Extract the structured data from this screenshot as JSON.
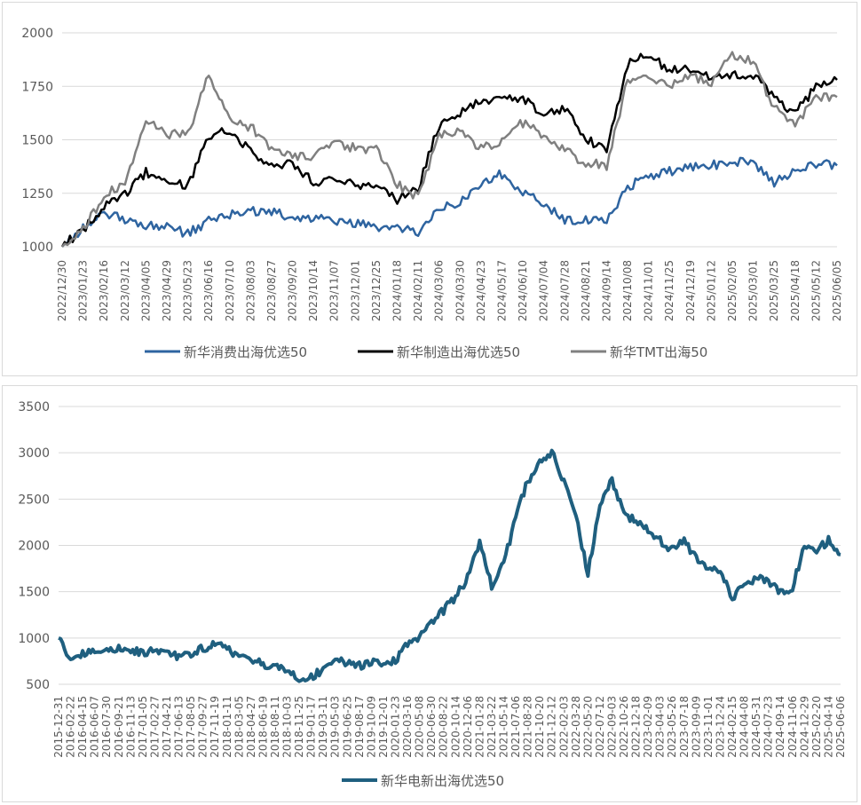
{
  "chart_data": [
    {
      "type": "line",
      "title": "",
      "xlabel": "",
      "ylabel": "",
      "ylim": [
        1000,
        2000
      ],
      "yticks": [
        1000,
        1250,
        1500,
        1750,
        2000
      ],
      "categories": [
        "2022/12/30",
        "2023/01/23",
        "2023/02/16",
        "2023/03/12",
        "2023/04/05",
        "2023/04/29",
        "2023/05/23",
        "2023/06/16",
        "2023/07/10",
        "2023/08/03",
        "2023/08/27",
        "2023/09/20",
        "2023/10/14",
        "2023/11/07",
        "2023/12/01",
        "2023/12/25",
        "2024/01/18",
        "2024/02/11",
        "2024/03/06",
        "2024/03/30",
        "2024/04/23",
        "2024/05/17",
        "2024/06/10",
        "2024/07/04",
        "2024/07/28",
        "2024/08/21",
        "2024/09/14",
        "2024/10/08",
        "2024/11/01",
        "2024/11/25",
        "2024/12/19",
        "2025/01/12",
        "2025/02/05",
        "2025/03/01",
        "2025/03/25",
        "2025/04/18",
        "2025/05/12",
        "2025/06/05"
      ],
      "series": [
        {
          "name": "新华消费出海优选50",
          "color": "#2e64a0",
          "values": [
            1000,
            1090,
            1150,
            1130,
            1100,
            1100,
            1060,
            1120,
            1150,
            1170,
            1160,
            1140,
            1130,
            1120,
            1110,
            1090,
            1080,
            1070,
            1170,
            1210,
            1300,
            1340,
            1250,
            1200,
            1130,
            1120,
            1120,
            1280,
            1330,
            1350,
            1370,
            1380,
            1400,
            1400,
            1300,
            1350,
            1390,
            1380
          ]
        },
        {
          "name": "新华制造出海优选50",
          "color": "#000000",
          "values": [
            1000,
            1080,
            1190,
            1240,
            1350,
            1300,
            1290,
            1520,
            1550,
            1450,
            1380,
            1390,
            1300,
            1310,
            1290,
            1290,
            1220,
            1270,
            1570,
            1630,
            1680,
            1690,
            1700,
            1620,
            1650,
            1500,
            1460,
            1850,
            1900,
            1820,
            1830,
            1800,
            1800,
            1800,
            1700,
            1620,
            1750,
            1780
          ]
        },
        {
          "name": "新华TMT出海50",
          "color": "#808080",
          "values": [
            1000,
            1080,
            1240,
            1300,
            1600,
            1530,
            1520,
            1800,
            1600,
            1560,
            1460,
            1430,
            1420,
            1480,
            1460,
            1460,
            1290,
            1230,
            1520,
            1540,
            1460,
            1500,
            1580,
            1520,
            1450,
            1390,
            1380,
            1780,
            1790,
            1760,
            1800,
            1770,
            1900,
            1860,
            1650,
            1570,
            1700,
            1700
          ]
        }
      ],
      "legend": "bottom"
    },
    {
      "type": "line",
      "title": "",
      "xlabel": "",
      "ylabel": "",
      "ylim": [
        500,
        3500
      ],
      "yticks": [
        500,
        1000,
        1500,
        2000,
        2500,
        3000,
        3500
      ],
      "categories": [
        "2015-12-31",
        "2016-02-22",
        "2016-04-15",
        "2016-06-07",
        "2016-07-30",
        "2016-09-21",
        "2016-11-13",
        "2017-01-05",
        "2017-02-27",
        "2017-04-21",
        "2017-06-13",
        "2017-08-05",
        "2017-09-27",
        "2017-11-19",
        "2018-01-11",
        "2018-03-05",
        "2018-04-27",
        "2018-06-19",
        "2018-08-11",
        "2018-10-03",
        "2018-11-25",
        "2019-01-17",
        "2019-03-11",
        "2019-05-03",
        "2019-06-25",
        "2019-08-17",
        "2019-10-09",
        "2019-12-01",
        "2020-01-23",
        "2020-03-16",
        "2020-05-08",
        "2020-06-30",
        "2020-08-22",
        "2020-10-14",
        "2020-12-06",
        "2021-01-28",
        "2021-03-22",
        "2021-05-14",
        "2021-07-06",
        "2021-08-28",
        "2021-10-20",
        "2021-12-12",
        "2022-02-03",
        "2022-03-28",
        "2022-05-20",
        "2022-07-12",
        "2022-09-03",
        "2022-10-26",
        "2022-12-18",
        "2023-02-09",
        "2023-04-03",
        "2023-05-26",
        "2023-07-18",
        "2023-09-09",
        "2023-11-01",
        "2023-12-24",
        "2024-02-15",
        "2024-04-08",
        "2024-05-31",
        "2024-07-23",
        "2024-09-14",
        "2024-11-06",
        "2024-12-29",
        "2025-02-20",
        "2025-04-14",
        "2025-06-06"
      ],
      "series": [
        {
          "name": "新华电新出海优选50",
          "color": "#1f5f7f",
          "values": [
            1000,
            780,
            830,
            860,
            890,
            880,
            860,
            850,
            870,
            840,
            800,
            840,
            890,
            940,
            880,
            800,
            760,
            720,
            680,
            640,
            540,
            580,
            660,
            800,
            720,
            700,
            730,
            740,
            760,
            950,
            1000,
            1150,
            1300,
            1450,
            1650,
            2050,
            1550,
            1800,
            2300,
            2700,
            2900,
            3000,
            2700,
            2300,
            1700,
            2450,
            2700,
            2350,
            2250,
            2150,
            2050,
            1950,
            2050,
            1850,
            1750,
            1700,
            1450,
            1550,
            1650,
            1600,
            1500,
            1550,
            2000,
            1950,
            2050,
            1900
          ]
        }
      ],
      "legend": "bottom"
    }
  ]
}
